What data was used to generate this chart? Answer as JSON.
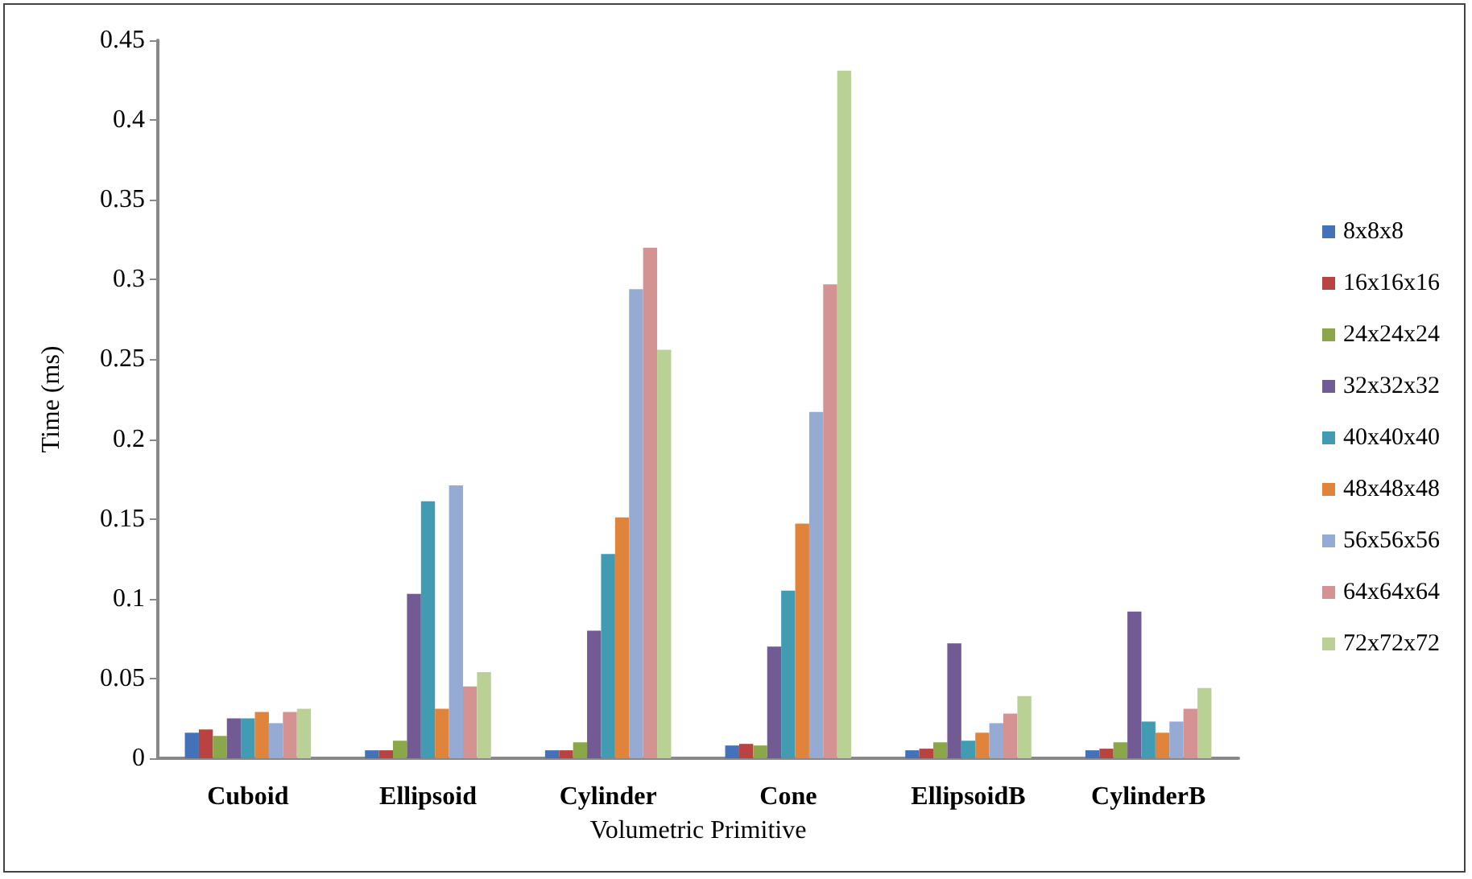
{
  "chart_data": {
    "type": "bar",
    "xlabel": "Volumetric Primitive",
    "ylabel": "Time (ms)",
    "categories": [
      "Cuboid",
      "Ellipsoid",
      "Cylinder",
      "Cone",
      "EllipsoidB",
      "CylinderB"
    ],
    "ylim": [
      0,
      0.45
    ],
    "yticks": [
      0,
      0.05,
      0.1,
      0.15,
      0.2,
      0.25,
      0.3,
      0.35,
      0.4,
      0.45
    ],
    "grid": false,
    "legend": "right",
    "series": [
      {
        "name": "8x8x8",
        "color": "#4472b8",
        "values": [
          0.016,
          0.005,
          0.005,
          0.008,
          0.005,
          0.005
        ]
      },
      {
        "name": "16x16x16",
        "color": "#b84340",
        "values": [
          0.018,
          0.005,
          0.005,
          0.009,
          0.006,
          0.006
        ]
      },
      {
        "name": "24x24x24",
        "color": "#8aa84a",
        "values": [
          0.014,
          0.011,
          0.01,
          0.008,
          0.01,
          0.01
        ]
      },
      {
        "name": "32x32x32",
        "color": "#725a94",
        "values": [
          0.025,
          0.103,
          0.08,
          0.07,
          0.072,
          0.092
        ]
      },
      {
        "name": "40x40x40",
        "color": "#419bb3",
        "values": [
          0.025,
          0.161,
          0.128,
          0.105,
          0.011,
          0.023
        ]
      },
      {
        "name": "48x48x48",
        "color": "#e0843b",
        "values": [
          0.029,
          0.031,
          0.151,
          0.147,
          0.016,
          0.016
        ]
      },
      {
        "name": "56x56x56",
        "color": "#96abd4",
        "values": [
          0.022,
          0.171,
          0.294,
          0.217,
          0.022,
          0.023
        ]
      },
      {
        "name": "64x64x64",
        "color": "#d49292",
        "values": [
          0.029,
          0.045,
          0.32,
          0.297,
          0.028,
          0.031
        ]
      },
      {
        "name": "72x72x72",
        "color": "#bad196",
        "values": [
          0.031,
          0.054,
          0.256,
          0.431,
          0.039,
          0.044
        ]
      }
    ]
  }
}
